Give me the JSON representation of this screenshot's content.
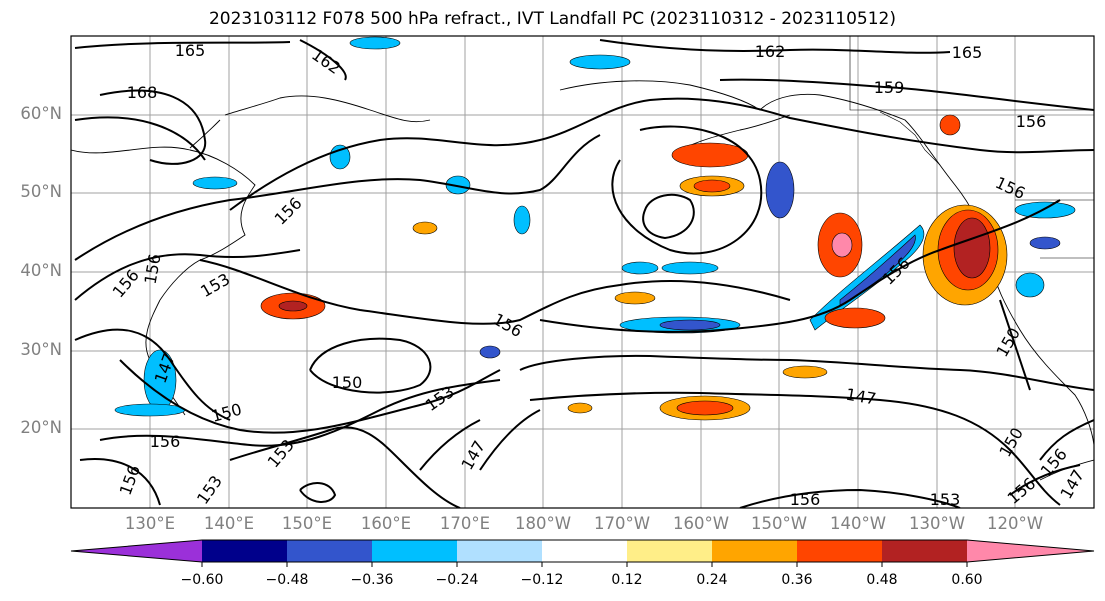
{
  "title": "2023103112 F078 500 hPa refract., IVT Landfall PC (2023110312 - 2023110512)",
  "map": {
    "latitude_labels": [
      "60°N",
      "50°N",
      "40°N",
      "30°N",
      "20°N"
    ],
    "longitude_labels": [
      "130°E",
      "140°E",
      "150°E",
      "160°E",
      "170°E",
      "180°W",
      "170°W",
      "160°W",
      "150°W",
      "140°W",
      "130°W",
      "120°W"
    ],
    "contour_labels": [
      "165",
      "162",
      "168",
      "162",
      "165",
      "159",
      "156",
      "156",
      "156",
      "156",
      "156",
      "153",
      "156",
      "147",
      "150",
      "150",
      "153",
      "156",
      "153",
      "147",
      "156",
      "156",
      "150",
      "147",
      "150",
      "153",
      "156",
      "156",
      "153",
      "156",
      "147"
    ],
    "grid_color": "#a0a0a0",
    "contour_color": "#000000"
  },
  "colorbar": {
    "colors": [
      "#9b30d9",
      "#00008b",
      "#3355cc",
      "#00bfff",
      "#b0e0ff",
      "#ffffff",
      "#ffee88",
      "#ffa500",
      "#ff4500",
      "#b22222",
      "#ff88aa"
    ],
    "tick_labels": [
      "−0.60",
      "−0.48",
      "−0.36",
      "−0.24",
      "−0.12",
      "0.12",
      "0.24",
      "0.36",
      "0.48",
      "0.60"
    ]
  }
}
